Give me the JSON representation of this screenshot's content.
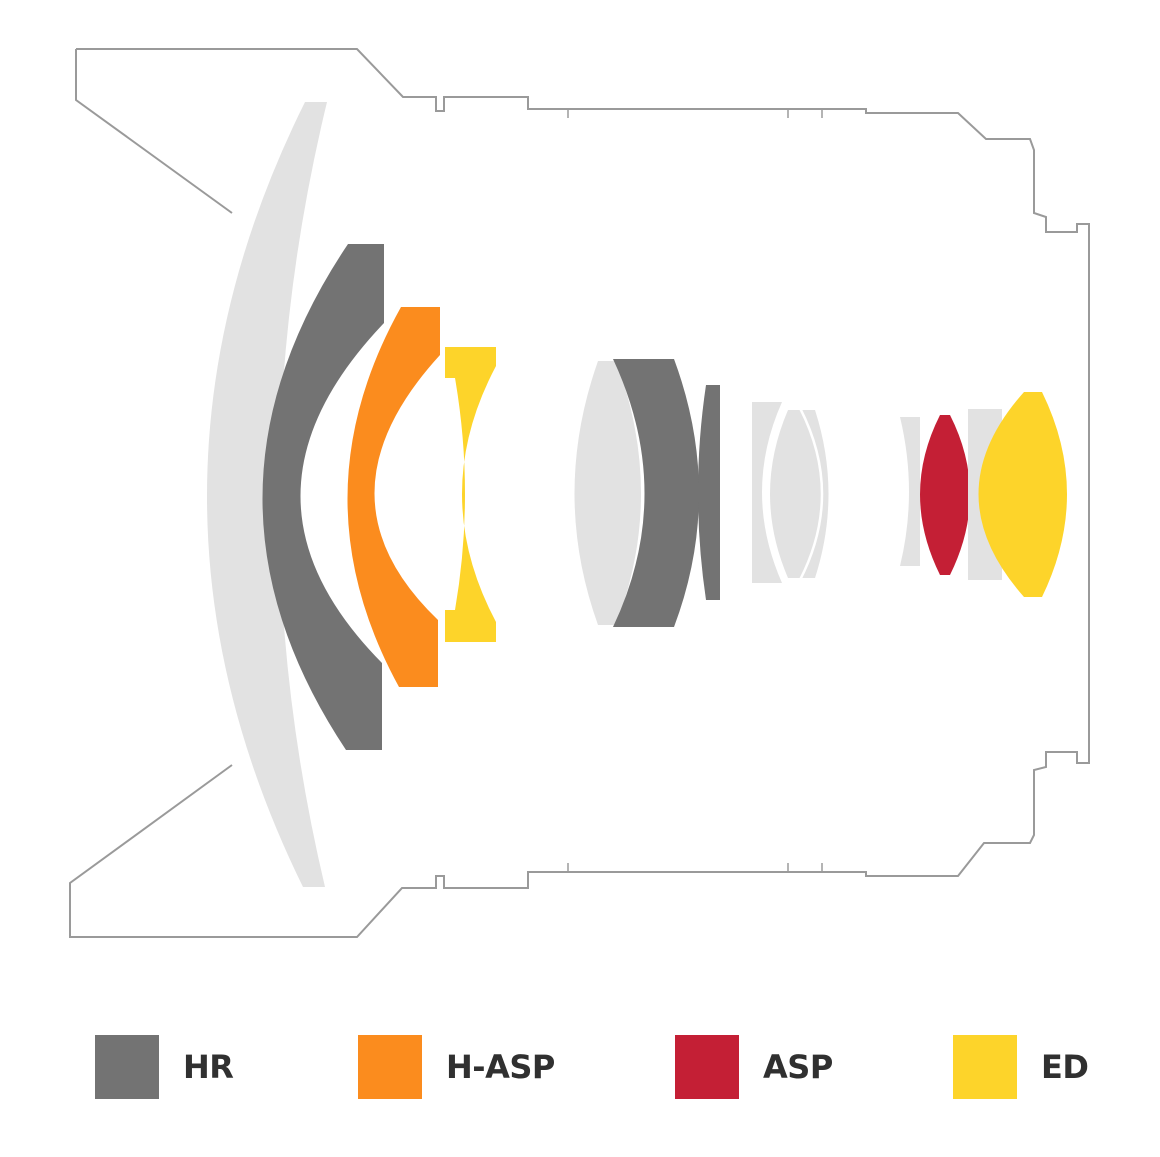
{
  "colors": {
    "outline": "#9a9a9a",
    "plain_element": "#e2e2e2",
    "hr": "#737373",
    "h_asp": "#fb8c1e",
    "asp": "#c41f35",
    "ed": "#fdd42a"
  },
  "legend": [
    {
      "key": "hr",
      "label": "HR",
      "color": "#737373"
    },
    {
      "key": "h_asp",
      "label": "H-ASP",
      "color": "#fb8c1e"
    },
    {
      "key": "asp",
      "label": "ASP",
      "color": "#c41f35"
    },
    {
      "key": "ed",
      "label": "ED",
      "color": "#fdd42a"
    }
  ]
}
